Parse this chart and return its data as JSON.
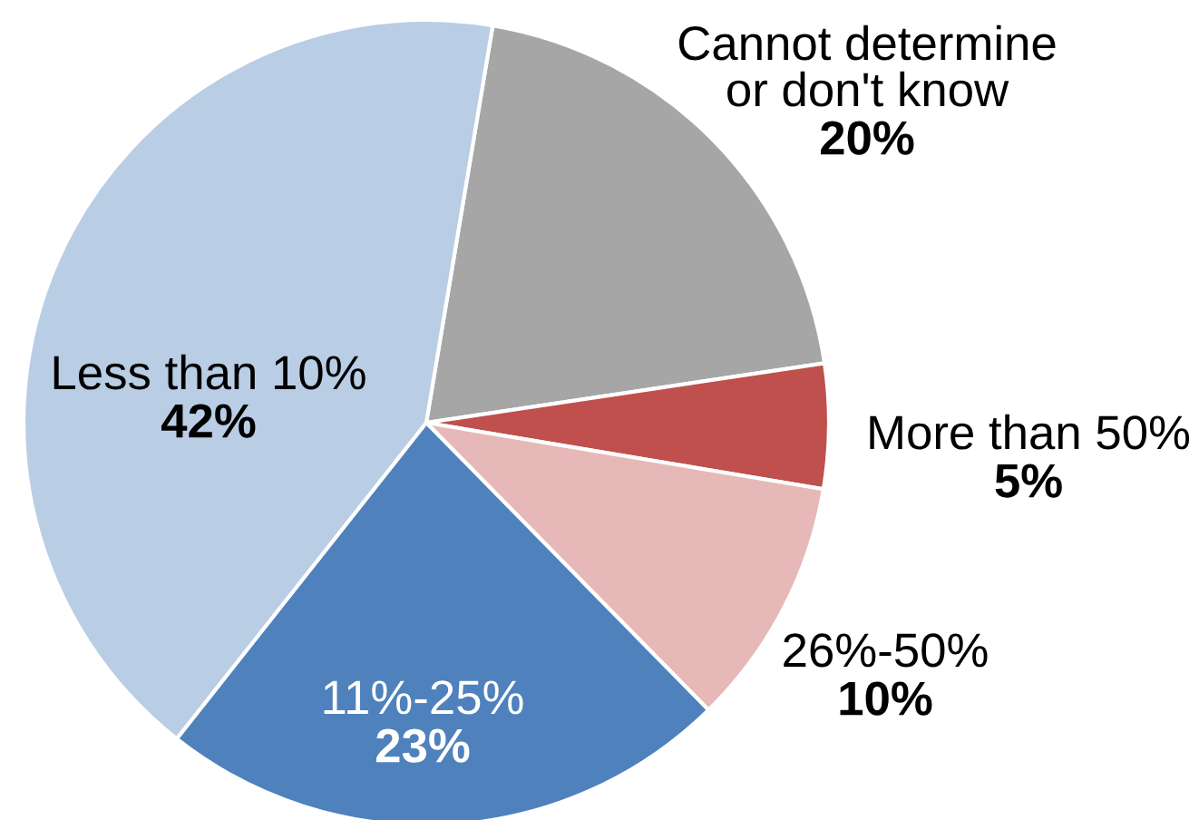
{
  "chart_data": {
    "type": "pie",
    "categories": [
      "Cannot determine\nor don't know",
      "More than 50%",
      "26%-50%",
      "11%-25%",
      "Less than 10%"
    ],
    "values": [
      20,
      5,
      10,
      23,
      42
    ],
    "value_labels": [
      "20%",
      "5%",
      "10%",
      "23%",
      "42%"
    ],
    "colors": [
      "#a6a6a6",
      "#c0504d",
      "#e6b9b8",
      "#4f81bd",
      "#b9cde5"
    ]
  }
}
